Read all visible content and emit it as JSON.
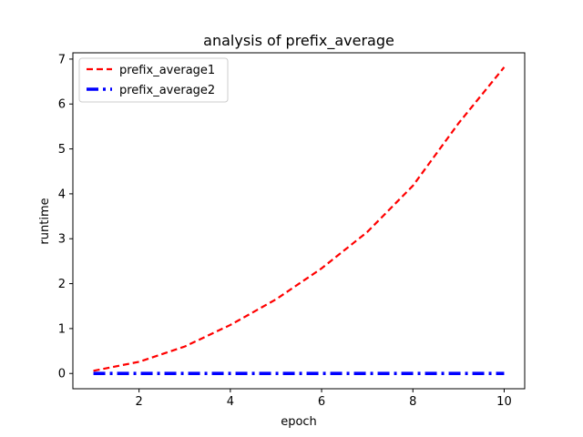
{
  "chart_data": {
    "type": "line",
    "title": "analysis of prefix_average",
    "xlabel": "epoch",
    "ylabel": "runtime",
    "xlim": [
      0.55,
      10.45
    ],
    "ylim": [
      -0.34,
      7.14
    ],
    "xticks": [
      2,
      4,
      6,
      8,
      10
    ],
    "yticks": [
      0,
      1,
      2,
      3,
      4,
      5,
      6,
      7
    ],
    "grid": false,
    "legend_position": "top-left",
    "x": [
      1,
      2,
      3,
      4,
      5,
      6,
      7,
      8,
      9,
      10
    ],
    "series": [
      {
        "name": "prefix_average1",
        "values": [
          0.06,
          0.26,
          0.6,
          1.08,
          1.65,
          2.34,
          3.15,
          4.18,
          5.57,
          6.82
        ],
        "color": "#ff0000",
        "style": "dashed"
      },
      {
        "name": "prefix_average2",
        "values": [
          0.0,
          0.0,
          0.0,
          0.0,
          0.0,
          0.0,
          0.0,
          0.0,
          0.0,
          0.0
        ],
        "color": "#0000ff",
        "style": "dashdot"
      }
    ]
  }
}
